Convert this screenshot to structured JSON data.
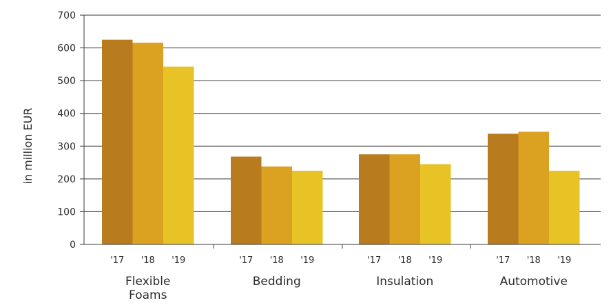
{
  "chart_data": {
    "type": "bar",
    "title": "",
    "xlabel": "",
    "ylabel": "in million EUR",
    "ylim": [
      0,
      700
    ],
    "yticks": [
      0,
      100,
      200,
      300,
      400,
      500,
      600,
      700
    ],
    "grid": true,
    "legend": "none",
    "categories": [
      [
        "Flexible",
        "Foams"
      ],
      [
        "Bedding"
      ],
      [
        "Insulation"
      ],
      [
        "Automotive"
      ]
    ],
    "series": [
      {
        "label": "'17",
        "color": "#B87B1E",
        "values": [
          625,
          268,
          275,
          338
        ]
      },
      {
        "label": "'18",
        "color": "#DBA222",
        "values": [
          616,
          238,
          275,
          344
        ]
      },
      {
        "label": "'19",
        "color": "#E8C326",
        "values": [
          543,
          225,
          245,
          225
        ]
      }
    ]
  }
}
